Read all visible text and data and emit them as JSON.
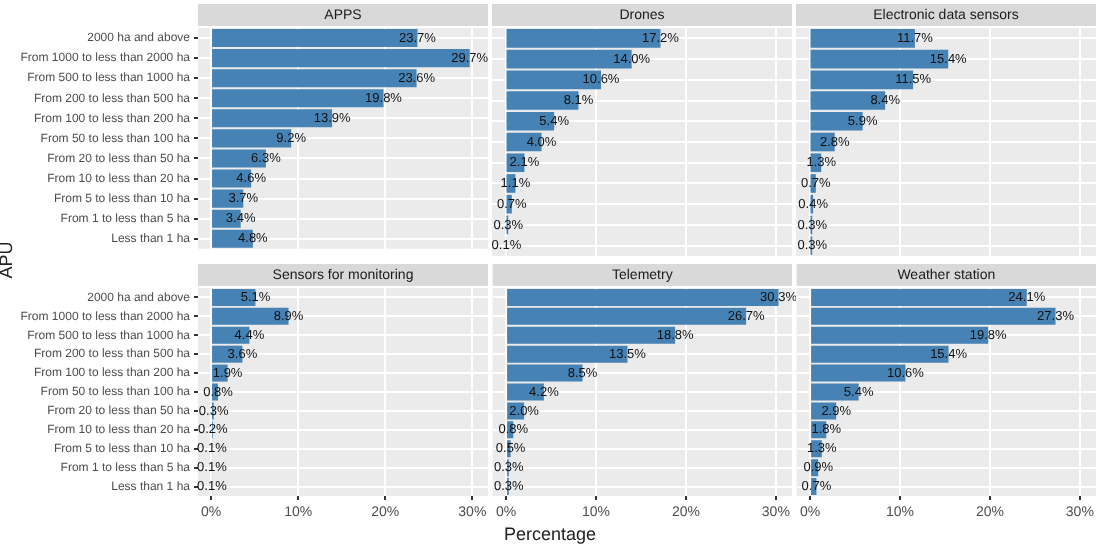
{
  "chart_data": [
    {
      "type": "bar",
      "orientation": "horizontal",
      "title": "APPS",
      "ylabel": "APU",
      "categories": [
        "2000 ha and above",
        "From 1000 to less than 2000 ha",
        "From 500 to less than 1000 ha",
        "From 200 to less than 500 ha",
        "From 100 to less than 200 ha",
        "From 50 to less than 100 ha",
        "From 20 to less than 50 ha",
        "From 10 to less than 20 ha",
        "From 5 to less than 10 ha",
        "From 1 to less than 5 ha",
        "Less than 1 ha"
      ],
      "values": [
        23.7,
        29.7,
        23.6,
        19.8,
        13.9,
        9.2,
        6.3,
        4.6,
        3.7,
        3.4,
        4.8
      ],
      "value_labels": [
        "23.7%",
        "29.7%",
        "23.6%",
        "19.8%",
        "13.9%",
        "9.2%",
        "6.3%",
        "4.6%",
        "3.7%",
        "3.4%",
        "4.8%"
      ],
      "color": "#4682b4",
      "xlim": [
        -1.5,
        31.8
      ],
      "xticks": [
        {
          "value": 0,
          "label": null
        },
        {
          "value": 10,
          "label": null
        },
        {
          "value": 20,
          "label": null
        },
        {
          "value": 30,
          "label": null
        }
      ],
      "grid": true,
      "tick_labels": "y"
    },
    {
      "type": "bar",
      "orientation": "horizontal",
      "title": "Drones",
      "categories": [
        null,
        null,
        null,
        null,
        null,
        null,
        null,
        null,
        null,
        null,
        null
      ],
      "values": [
        17.2,
        14.0,
        10.6,
        8.1,
        5.4,
        4.0,
        2.1,
        1.1,
        0.7,
        0.3,
        0.1
      ],
      "value_labels": [
        "17.2%",
        "14.0%",
        "10.6%",
        "8.1%",
        "5.4%",
        "4.0%",
        "2.1%",
        "1.1%",
        "0.7%",
        "0.3%",
        "0.1%"
      ],
      "color": "#4682b4",
      "xlim": [
        -1.5,
        31.8
      ],
      "xticks": [
        {
          "value": 0,
          "label": null
        },
        {
          "value": 10,
          "label": null
        },
        {
          "value": 20,
          "label": null
        },
        {
          "value": 30,
          "label": null
        }
      ],
      "grid": true,
      "tick_labels": false
    },
    {
      "type": "bar",
      "orientation": "horizontal",
      "title": "Electronic data sensors",
      "categories": [
        null,
        null,
        null,
        null,
        null,
        null,
        null,
        null,
        null,
        null,
        null
      ],
      "values": [
        11.7,
        15.4,
        11.5,
        8.4,
        5.9,
        2.8,
        1.3,
        0.7,
        0.4,
        0.3,
        0.3
      ],
      "value_labels": [
        "11.7%",
        "15.4%",
        "11.5%",
        "8.4%",
        "5.9%",
        "2.8%",
        "1.3%",
        "0.7%",
        "0.4%",
        "0.3%",
        "0.3%"
      ],
      "color": "#4682b4",
      "xlim": [
        -1.5,
        31.8
      ],
      "xticks": [
        {
          "value": 0,
          "label": null
        },
        {
          "value": 10,
          "label": null
        },
        {
          "value": 20,
          "label": null
        },
        {
          "value": 30,
          "label": null
        }
      ],
      "grid": true,
      "tick_labels": false
    },
    {
      "type": "bar",
      "orientation": "horizontal",
      "title": "Sensors for monitoring",
      "categories": [
        "2000 ha and above",
        "From 1000 to less than 2000 ha",
        "From 500 to less than 1000 ha",
        "From 200 to less than 500 ha",
        "From 100 to less than 200 ha",
        "From 50 to less than 100 ha",
        "From 20 to less than 50 ha",
        "From 10 to less than 20 ha",
        "From 5 to less than 10 ha",
        "From 1 to less than 5 ha",
        "Less than 1 ha"
      ],
      "values": [
        5.1,
        8.9,
        4.4,
        3.6,
        1.9,
        0.8,
        0.3,
        0.2,
        0.1,
        0.1,
        0.1
      ],
      "value_labels": [
        "5.1%",
        "8.9%",
        "4.4%",
        "3.6%",
        "1.9%",
        "0.8%",
        "0.3%",
        "0.2%",
        "0.1%",
        "0.1%",
        "0.1%"
      ],
      "color": "#4682b4",
      "xlim": [
        -1.5,
        31.8
      ],
      "xticks": [
        {
          "value": 0,
          "label": "0%"
        },
        {
          "value": 10,
          "label": "10%"
        },
        {
          "value": 20,
          "label": "20%"
        },
        {
          "value": 30,
          "label": "30%"
        }
      ],
      "grid": true
    },
    {
      "type": "bar",
      "orientation": "horizontal",
      "title": "Telemetry",
      "xlabel": "Percentage",
      "categories": [
        null,
        null,
        null,
        null,
        null,
        null,
        null,
        null,
        null,
        null,
        null
      ],
      "values": [
        30.3,
        26.7,
        18.8,
        13.5,
        8.5,
        4.2,
        2.0,
        0.8,
        0.5,
        0.3,
        0.3
      ],
      "value_labels": [
        "30.3%",
        "26.7%",
        "18.8%",
        "13.5%",
        "8.5%",
        "4.2%",
        "2.0%",
        "0.8%",
        "0.5%",
        "0.3%",
        "0.3%"
      ],
      "color": "#4682b4",
      "xlim": [
        -1.5,
        31.8
      ],
      "xticks": [
        {
          "value": 0,
          "label": "0%"
        },
        {
          "value": 10,
          "label": "10%"
        },
        {
          "value": 20,
          "label": "20%"
        },
        {
          "value": 30,
          "label": "30%"
        }
      ],
      "grid": true,
      "tick_labels": "x"
    },
    {
      "type": "bar",
      "orientation": "horizontal",
      "title": "Weather station",
      "categories": [
        null,
        null,
        null,
        null,
        null,
        null,
        null,
        null,
        null,
        null,
        null
      ],
      "values": [
        24.1,
        27.3,
        19.8,
        15.4,
        10.6,
        5.4,
        2.9,
        1.8,
        1.3,
        0.9,
        0.7
      ],
      "value_labels": [
        "24.1%",
        "27.3%",
        "19.8%",
        "15.4%",
        "10.6%",
        "5.4%",
        "2.9%",
        "1.8%",
        "1.3%",
        "0.9%",
        "0.7%"
      ],
      "color": "#4682b4",
      "xlim": [
        -1.5,
        31.8
      ],
      "xticks": [
        {
          "value": 0,
          "label": "0%"
        },
        {
          "value": 10,
          "label": "10%"
        },
        {
          "value": 20,
          "label": "20%"
        },
        {
          "value": 30,
          "label": "30%"
        }
      ],
      "grid": true,
      "tick_labels": "x"
    }
  ]
}
